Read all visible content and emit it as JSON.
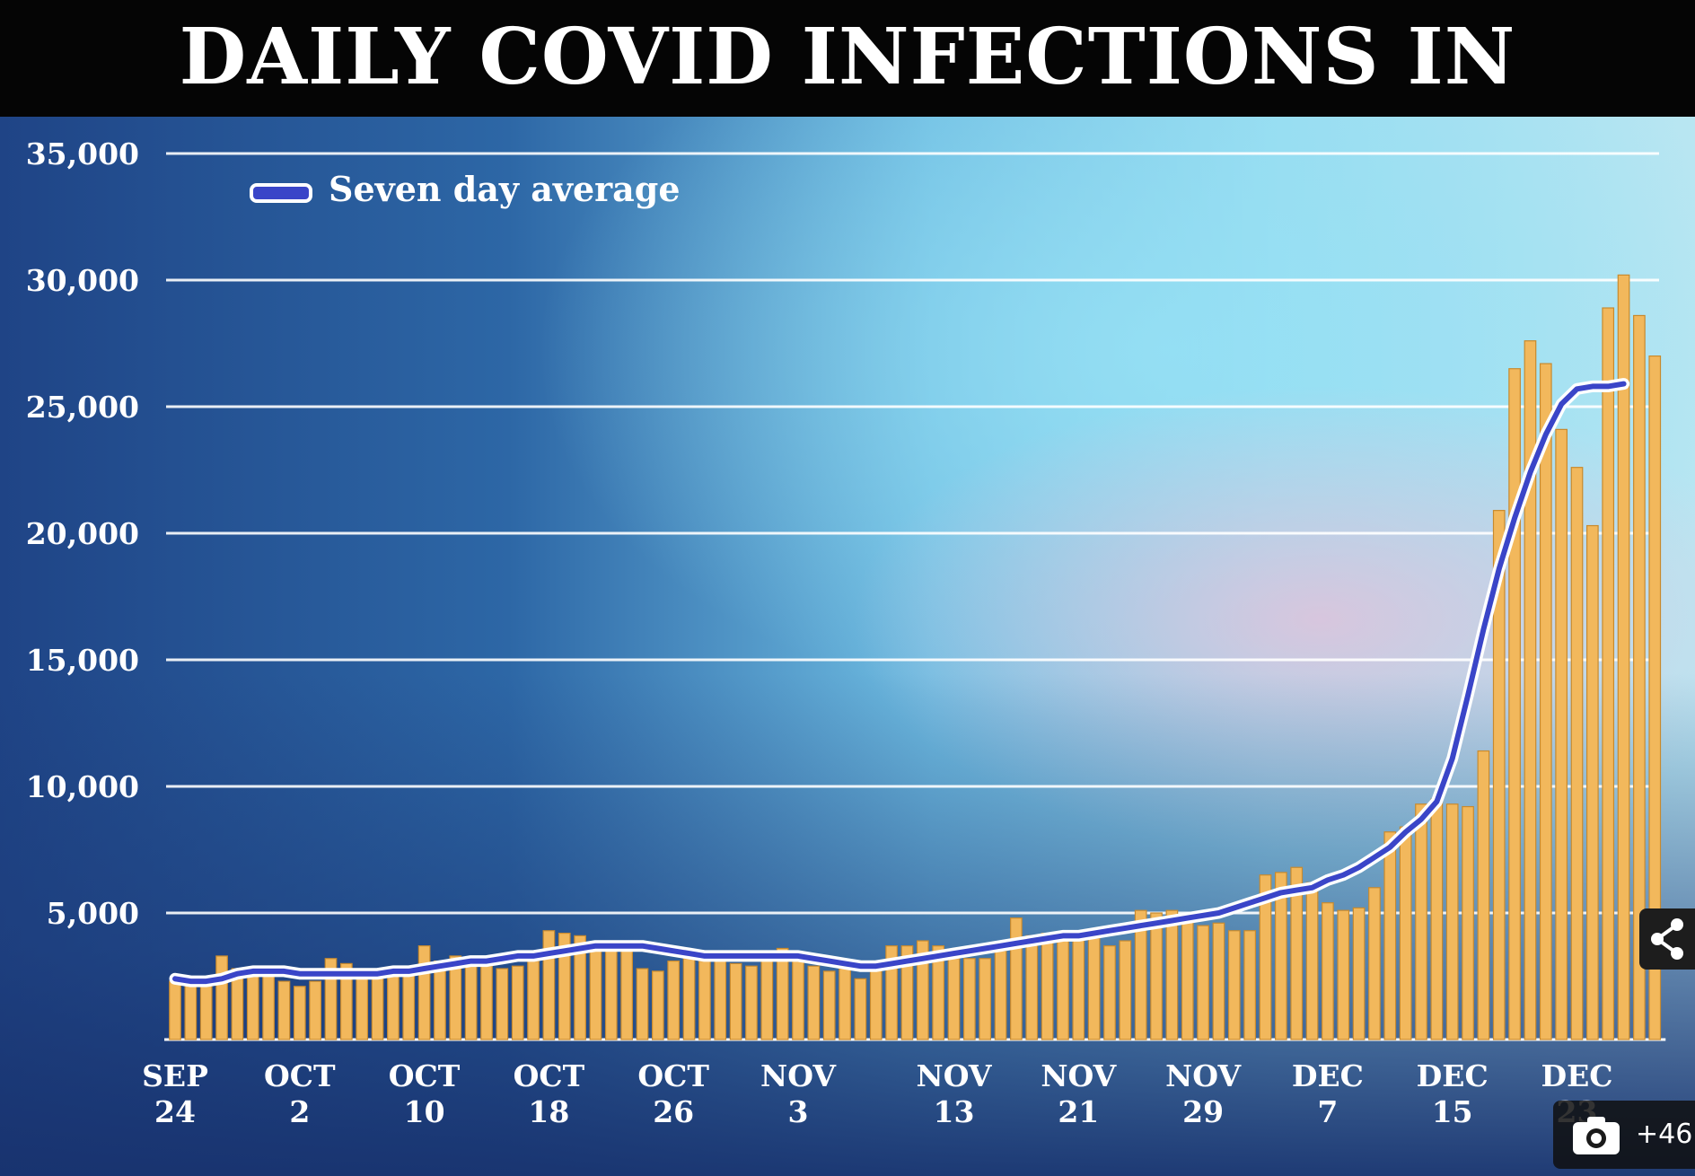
{
  "title": "DAILY COVID INFECTIONS IN LONDON",
  "legend_label": "Seven day average",
  "gallery_count": "+46",
  "icons": {
    "share": "share-icon",
    "camera": "camera-icon"
  },
  "colors": {
    "bar": "#f2b85c",
    "bar_edge": "#c88a2e",
    "avg_line": "#3a45c8",
    "avg_halo": "#ffffff",
    "grid": "#ffffff",
    "title_bg": "#050505"
  },
  "chart_data": {
    "type": "bar",
    "title": "DAILY COVID INFECTIONS IN LONDON",
    "xlabel": "",
    "ylabel": "",
    "ylim": [
      0,
      35000
    ],
    "yticks": [
      5000,
      10000,
      15000,
      20000,
      25000,
      30000,
      35000
    ],
    "ytick_labels": [
      "5,000",
      "10,000",
      "15,000",
      "20,000",
      "25,000",
      "30,000",
      "35,000"
    ],
    "grid": true,
    "legend_position": "top-left",
    "xtick_labels": [
      {
        "index": 0,
        "line1": "SEP",
        "line2": "24"
      },
      {
        "index": 8,
        "line1": "OCT",
        "line2": "2"
      },
      {
        "index": 16,
        "line1": "OCT",
        "line2": "10"
      },
      {
        "index": 24,
        "line1": "OCT",
        "line2": "18"
      },
      {
        "index": 32,
        "line1": "OCT",
        "line2": "26"
      },
      {
        "index": 40,
        "line1": "NOV",
        "line2": "3"
      },
      {
        "index": 50,
        "line1": "NOV",
        "line2": "13"
      },
      {
        "index": 58,
        "line1": "NOV",
        "line2": "21"
      },
      {
        "index": 66,
        "line1": "NOV",
        "line2": "29"
      },
      {
        "index": 74,
        "line1": "DEC",
        "line2": "7"
      },
      {
        "index": 82,
        "line1": "DEC",
        "line2": "15"
      },
      {
        "index": 90,
        "line1": "DEC",
        "line2": "23"
      }
    ],
    "series": [
      {
        "name": "",
        "type": "bar",
        "values": [
          2300,
          2300,
          2300,
          3300,
          2800,
          2600,
          2600,
          2300,
          2100,
          2300,
          3200,
          3000,
          2700,
          2500,
          2800,
          2900,
          3700,
          3100,
          3300,
          3200,
          2900,
          2800,
          2900,
          3100,
          4300,
          4200,
          4100,
          3500,
          3600,
          3500,
          2800,
          2700,
          3100,
          3200,
          3100,
          3200,
          3000,
          2900,
          3200,
          3600,
          3400,
          2900,
          2700,
          2800,
          2400,
          2800,
          3700,
          3700,
          3900,
          3700,
          3200,
          3200,
          3200,
          3500,
          4800,
          4100,
          4200,
          4200,
          4200,
          4000,
          3700,
          3900,
          5100,
          5000,
          5100,
          4900,
          4500,
          4600,
          4300,
          4300,
          6500,
          6600,
          6800,
          6200,
          5400,
          5100,
          5200,
          6000,
          8200,
          8400,
          9300,
          9500,
          9300,
          9200,
          11400,
          20900,
          26500,
          27600,
          26700,
          24100,
          22600,
          20300,
          28900,
          30200,
          28600,
          27000
        ]
      },
      {
        "name": "Seven day average",
        "type": "line",
        "values": [
          2400,
          2300,
          2300,
          2400,
          2600,
          2700,
          2700,
          2700,
          2600,
          2600,
          2600,
          2600,
          2600,
          2600,
          2700,
          2700,
          2800,
          2900,
          3000,
          3100,
          3100,
          3200,
          3300,
          3300,
          3400,
          3500,
          3600,
          3700,
          3700,
          3700,
          3700,
          3600,
          3500,
          3400,
          3300,
          3300,
          3300,
          3300,
          3300,
          3300,
          3300,
          3200,
          3100,
          3000,
          2900,
          2900,
          3000,
          3100,
          3200,
          3300,
          3400,
          3500,
          3600,
          3700,
          3800,
          3900,
          4000,
          4100,
          4100,
          4200,
          4300,
          4400,
          4500,
          4600,
          4700,
          4800,
          4900,
          5000,
          5200,
          5400,
          5600,
          5800,
          5900,
          6000,
          6300,
          6500,
          6800,
          7200,
          7600,
          8200,
          8700,
          9400,
          11100,
          13600,
          16200,
          18600,
          20600,
          22400,
          23900,
          25100,
          25700,
          25800,
          25800,
          25900
        ]
      }
    ]
  }
}
